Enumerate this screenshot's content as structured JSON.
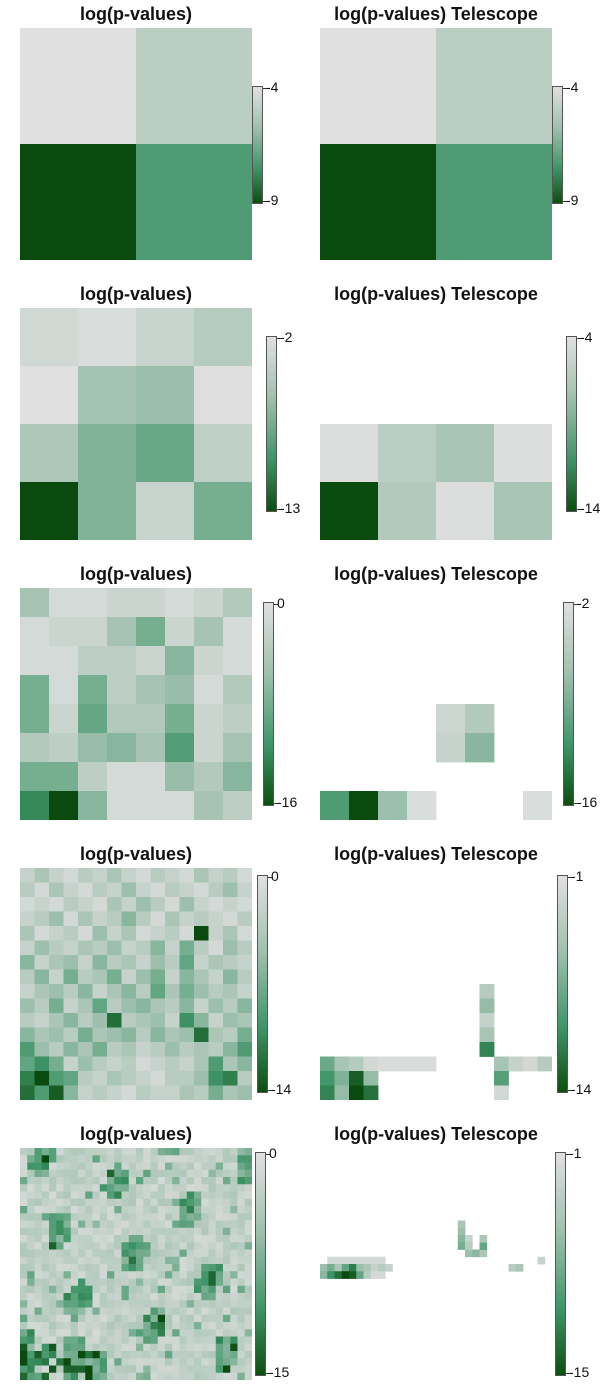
{
  "colors": {
    "light": "#dfdfdf",
    "mid": "#9fc0ae",
    "dark": "#0b4a0e",
    "background": "#ffffff"
  },
  "chart_data": [
    {
      "type": "heatmap",
      "title": "log(p-values)",
      "grid": [
        2,
        2
      ],
      "colorbar": {
        "max_label": "-4",
        "min_label": "-9"
      },
      "vmin": -9,
      "vmax": -4,
      "values": [
        [
          -4.0,
          -5.0
        ],
        [
          -9.0,
          -7.2
        ]
      ]
    },
    {
      "type": "heatmap",
      "title": "log(p-values) Telescope",
      "grid": [
        2,
        2
      ],
      "colorbar": {
        "max_label": "-4",
        "min_label": "-9"
      },
      "vmin": -9,
      "vmax": -4,
      "values": [
        [
          -4.0,
          -5.0
        ],
        [
          -9.0,
          -7.2
        ]
      ]
    },
    {
      "type": "heatmap",
      "title": "log(p-values)",
      "grid": [
        4,
        4
      ],
      "colorbar": {
        "max_label": "-2",
        "min_label": "-13"
      },
      "vmin": -13,
      "vmax": -2,
      "values": [
        [
          -3.0,
          -2.5,
          -3.5,
          -4.5
        ],
        [
          -2.0,
          -5.5,
          -6.0,
          -2.2
        ],
        [
          -5.0,
          -7.0,
          -8.0,
          -4.0
        ],
        [
          -13.0,
          -7.0,
          -3.5,
          -7.5
        ]
      ]
    },
    {
      "type": "heatmap",
      "title": "log(p-values) Telescope",
      "grid": [
        4,
        4
      ],
      "colorbar": {
        "max_label": "-4",
        "min_label": "-14"
      },
      "vmin": -14,
      "vmax": -4,
      "values": [
        [
          null,
          null,
          null,
          null
        ],
        [
          null,
          null,
          null,
          null
        ],
        [
          -4.2,
          -6.0,
          -7.0,
          -4.2
        ],
        [
          -14.0,
          -6.5,
          -4.2,
          -7.0
        ]
      ]
    },
    {
      "type": "heatmap",
      "title": "log(p-values)",
      "grid": [
        8,
        8
      ],
      "colorbar": {
        "max_label": "0",
        "min_label": "-16"
      },
      "vmin": -16,
      "vmax": 0,
      "values": [
        [
          -5,
          -1,
          -1,
          -2,
          -2,
          -1,
          -2,
          -4
        ],
        [
          -1,
          -2,
          -2,
          -5,
          -8,
          -2,
          -5,
          -1
        ],
        [
          -1,
          -1,
          -3,
          -3,
          -2,
          -7,
          -2,
          -1
        ],
        [
          -8,
          -1,
          -8,
          -3,
          -5,
          -6,
          -1,
          -4
        ],
        [
          -8,
          -2,
          -9,
          -4,
          -4,
          -8,
          -2,
          -3
        ],
        [
          -4,
          -3,
          -6,
          -7,
          -5,
          -10,
          -2,
          -5
        ],
        [
          -8,
          -8,
          -3,
          -1,
          -1,
          -6,
          -4,
          -7
        ],
        [
          -12,
          -16,
          -7,
          -1,
          -1,
          -1,
          -5,
          -3
        ]
      ]
    },
    {
      "type": "heatmap",
      "title": "log(p-values) Telescope",
      "grid": [
        8,
        8
      ],
      "colorbar": {
        "max_label": "-2",
        "min_label": "-16"
      },
      "vmin": -16,
      "vmax": -2,
      "values": [
        [
          null,
          null,
          null,
          null,
          null,
          null,
          null,
          null
        ],
        [
          null,
          null,
          null,
          null,
          null,
          null,
          null,
          null
        ],
        [
          null,
          null,
          null,
          null,
          null,
          null,
          null,
          null
        ],
        [
          null,
          null,
          null,
          null,
          null,
          null,
          null,
          null
        ],
        [
          null,
          null,
          null,
          null,
          -3.5,
          -5.5,
          null,
          null
        ],
        [
          null,
          null,
          null,
          null,
          -4,
          -8,
          null,
          null
        ],
        [
          null,
          null,
          null,
          null,
          null,
          null,
          null,
          null
        ],
        [
          -11,
          -16,
          -7,
          -2.5,
          null,
          null,
          null,
          -2.5
        ]
      ]
    },
    {
      "type": "heatmap",
      "title": "log(p-values)",
      "grid": [
        16,
        16
      ],
      "colorbar": {
        "max_label": "0",
        "min_label": "-14"
      },
      "vmin": -14,
      "vmax": 0,
      "values": [
        [
          -2,
          -4,
          -2,
          -1,
          -3,
          -2,
          -4,
          -2,
          -1,
          -3,
          -2,
          -1,
          -4,
          -2,
          -3,
          -1
        ],
        [
          -3,
          -1,
          -4,
          -2,
          -1,
          -3,
          -2,
          -5,
          -2,
          -1,
          -3,
          -2,
          -1,
          -3,
          -5,
          -2
        ],
        [
          -1,
          -2,
          -1,
          -3,
          -2,
          -1,
          -4,
          -2,
          -5,
          -3,
          -1,
          -5,
          -2,
          -1,
          -2,
          -1
        ],
        [
          -2,
          -3,
          -5,
          -1,
          -4,
          -2,
          -3,
          -6,
          -3,
          -1,
          -4,
          -2,
          -3,
          -2,
          -1,
          -3
        ],
        [
          -4,
          -1,
          -2,
          -3,
          -1,
          -5,
          -2,
          -4,
          -1,
          -2,
          -3,
          -1,
          -14,
          -2,
          -4,
          -1
        ],
        [
          -2,
          -5,
          -3,
          -2,
          -4,
          -3,
          -5,
          -2,
          -3,
          -6,
          -2,
          -7,
          -3,
          -1,
          -5,
          -3
        ],
        [
          -6,
          -2,
          -4,
          -5,
          -2,
          -6,
          -3,
          -4,
          -2,
          -5,
          -3,
          -8,
          -2,
          -4,
          -3,
          -2
        ],
        [
          -3,
          -6,
          -2,
          -7,
          -3,
          -4,
          -7,
          -2,
          -5,
          -7,
          -2,
          -6,
          -4,
          -2,
          -6,
          -3
        ],
        [
          -2,
          -4,
          -5,
          -3,
          -6,
          -2,
          -4,
          -6,
          -3,
          -8,
          -4,
          -7,
          -5,
          -3,
          -4,
          -2
        ],
        [
          -5,
          -3,
          -7,
          -2,
          -4,
          -8,
          -3,
          -5,
          -6,
          -4,
          -3,
          -6,
          -2,
          -5,
          -3,
          -6
        ],
        [
          -3,
          -2,
          -4,
          -6,
          -3,
          -5,
          -12,
          -3,
          -4,
          -5,
          -2,
          -10,
          -6,
          -2,
          -5,
          -4
        ],
        [
          -6,
          -4,
          -5,
          -3,
          -7,
          -4,
          -5,
          -6,
          -3,
          -6,
          -4,
          -5,
          -12,
          -4,
          -3,
          -7
        ],
        [
          -9,
          -5,
          -3,
          -6,
          -4,
          -7,
          -3,
          -4,
          -2,
          -3,
          -5,
          -3,
          -4,
          -3,
          -6,
          -9
        ],
        [
          -8,
          -10,
          -7,
          -2,
          -5,
          -3,
          -2,
          -3,
          -1,
          -2,
          -3,
          -2,
          -4,
          -9,
          -4,
          -6
        ],
        [
          -11,
          -14,
          -9,
          -8,
          -3,
          -2,
          -4,
          -3,
          -2,
          -1,
          -3,
          -3,
          -5,
          -10,
          -11,
          -3
        ],
        [
          -12,
          -9,
          -13,
          -6,
          -2,
          -3,
          -2,
          -1,
          -3,
          -2,
          -2,
          -4,
          -3,
          -7,
          -4,
          -5
        ]
      ]
    },
    {
      "type": "heatmap",
      "title": "log(p-values) Telescope",
      "grid": [
        16,
        16
      ],
      "colorbar": {
        "max_label": "-1",
        "min_label": "-14"
      },
      "vmin": -14,
      "vmax": -1,
      "values": [
        [
          null,
          null,
          null,
          null,
          null,
          null,
          null,
          null,
          null,
          null,
          null,
          null,
          null,
          null,
          null,
          null
        ],
        [
          null,
          null,
          null,
          null,
          null,
          null,
          null,
          null,
          null,
          null,
          null,
          null,
          null,
          null,
          null,
          null
        ],
        [
          null,
          null,
          null,
          null,
          null,
          null,
          null,
          null,
          null,
          null,
          null,
          null,
          null,
          null,
          null,
          null
        ],
        [
          null,
          null,
          null,
          null,
          null,
          null,
          null,
          null,
          null,
          null,
          null,
          null,
          null,
          null,
          null,
          null
        ],
        [
          null,
          null,
          null,
          null,
          null,
          null,
          null,
          null,
          null,
          null,
          null,
          null,
          null,
          null,
          null,
          null
        ],
        [
          null,
          null,
          null,
          null,
          null,
          null,
          null,
          null,
          null,
          null,
          null,
          null,
          null,
          null,
          null,
          null
        ],
        [
          null,
          null,
          null,
          null,
          null,
          null,
          null,
          null,
          null,
          null,
          null,
          null,
          null,
          null,
          null,
          null
        ],
        [
          null,
          null,
          null,
          null,
          null,
          null,
          null,
          null,
          null,
          null,
          null,
          null,
          null,
          null,
          null,
          null
        ],
        [
          null,
          null,
          null,
          null,
          null,
          null,
          null,
          null,
          null,
          null,
          null,
          -4,
          null,
          null,
          null,
          null
        ],
        [
          null,
          null,
          null,
          null,
          null,
          null,
          null,
          null,
          null,
          null,
          null,
          -6,
          null,
          null,
          null,
          null
        ],
        [
          null,
          null,
          null,
          null,
          null,
          null,
          null,
          null,
          null,
          null,
          null,
          -3,
          null,
          null,
          null,
          null
        ],
        [
          null,
          null,
          null,
          null,
          null,
          null,
          null,
          null,
          null,
          null,
          null,
          -5,
          null,
          null,
          null,
          null
        ],
        [
          null,
          null,
          null,
          null,
          null,
          null,
          null,
          null,
          null,
          null,
          null,
          -11,
          null,
          null,
          null,
          null
        ],
        [
          -8,
          -5,
          -4,
          -2,
          -1.5,
          -1.5,
          -1.5,
          -1.5,
          null,
          null,
          null,
          null,
          -5,
          -3,
          -2,
          -4
        ],
        [
          -10,
          -7,
          -13,
          -6,
          null,
          null,
          null,
          null,
          null,
          null,
          null,
          null,
          -9,
          null,
          null,
          null
        ],
        [
          -11,
          -6,
          -14,
          -12,
          null,
          null,
          null,
          null,
          null,
          null,
          null,
          null,
          -2,
          null,
          null,
          null
        ]
      ]
    },
    {
      "type": "heatmap",
      "title": "log(p-values)",
      "grid": [
        32,
        32
      ],
      "seed": 11,
      "colorbar": {
        "max_label": "0",
        "min_label": "-15"
      },
      "vmin": -15,
      "vmax": 0
    },
    {
      "type": "heatmap",
      "title": "log(p-values) Telescope",
      "grid": [
        32,
        32
      ],
      "colorbar": {
        "max_label": "-1",
        "min_label": "-15"
      },
      "vmin": -15,
      "vmax": -1,
      "cells": [
        [
          15,
          1,
          -2
        ],
        [
          15,
          2,
          -2
        ],
        [
          15,
          3,
          -2
        ],
        [
          15,
          4,
          -2
        ],
        [
          15,
          5,
          -2
        ],
        [
          15,
          6,
          -2
        ],
        [
          15,
          7,
          -2
        ],
        [
          15,
          8,
          -2
        ],
        [
          16,
          0,
          -6
        ],
        [
          16,
          1,
          -8
        ],
        [
          16,
          2,
          -5
        ],
        [
          16,
          3,
          -9
        ],
        [
          16,
          4,
          -12
        ],
        [
          16,
          5,
          -6
        ],
        [
          16,
          6,
          -5
        ],
        [
          16,
          7,
          -3
        ],
        [
          17,
          0,
          -7
        ],
        [
          17,
          1,
          -11
        ],
        [
          17,
          2,
          -13
        ],
        [
          17,
          3,
          -15
        ],
        [
          17,
          4,
          -14
        ],
        [
          17,
          5,
          -9
        ],
        [
          17,
          6,
          -4
        ],
        [
          17,
          7,
          -2
        ],
        [
          16,
          8,
          -4
        ],
        [
          16,
          9,
          -3
        ],
        [
          17,
          8,
          -2
        ],
        [
          14,
          20,
          -6
        ],
        [
          14,
          21,
          -7
        ],
        [
          10,
          19,
          -5
        ],
        [
          11,
          19,
          -6
        ],
        [
          12,
          19,
          -7
        ],
        [
          13,
          19,
          -8
        ],
        [
          12,
          20,
          -3
        ],
        [
          13,
          20,
          -4
        ],
        [
          14,
          22,
          -5
        ],
        [
          13,
          22,
          -9
        ],
        [
          12,
          22,
          -5
        ],
        [
          16,
          26,
          -4
        ],
        [
          16,
          27,
          -5
        ],
        [
          15,
          30,
          -3
        ]
      ]
    }
  ]
}
